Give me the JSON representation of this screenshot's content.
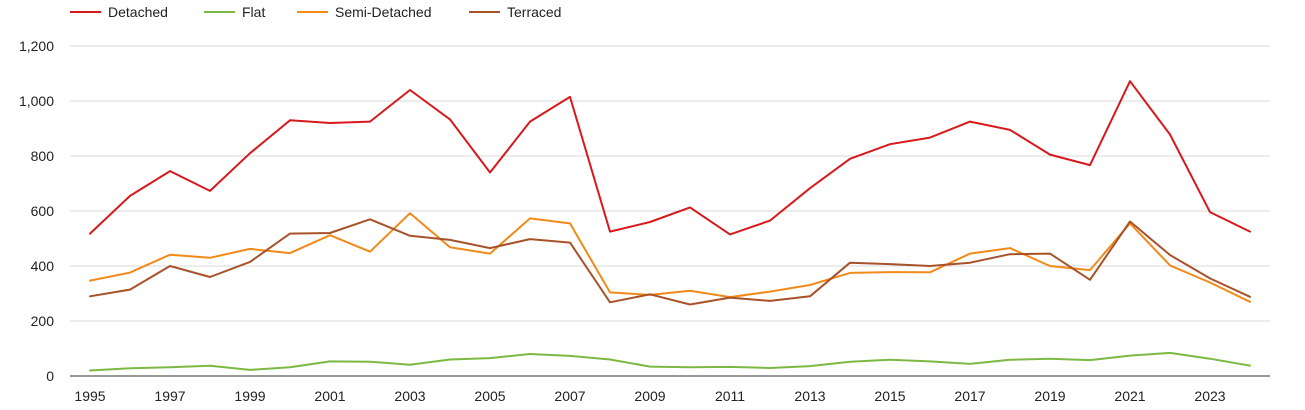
{
  "chart_data": {
    "type": "line",
    "title": "",
    "xlabel": "",
    "ylabel": "",
    "x": [
      1995,
      1996,
      1997,
      1998,
      1999,
      2000,
      2001,
      2002,
      2003,
      2004,
      2005,
      2006,
      2007,
      2008,
      2009,
      2010,
      2011,
      2012,
      2013,
      2014,
      2015,
      2016,
      2017,
      2018,
      2019,
      2020,
      2021,
      2022,
      2023,
      2024
    ],
    "xlim": [
      1995,
      2024
    ],
    "ylim": [
      0,
      1200
    ],
    "x_ticks": [
      "1995",
      "1997",
      "1999",
      "2001",
      "2003",
      "2005",
      "2007",
      "2009",
      "2011",
      "2013",
      "2015",
      "2017",
      "2019",
      "2021",
      "2023"
    ],
    "y_ticks": [
      "0",
      "200",
      "400",
      "600",
      "800",
      "1,000",
      "1,200"
    ],
    "grid": true,
    "legend_position": "top-left",
    "series": [
      {
        "name": "Detached",
        "color": "#d7191c",
        "values": [
          518,
          655,
          745,
          673,
          810,
          930,
          920,
          925,
          1040,
          933,
          740,
          925,
          1015,
          525,
          560,
          613,
          515,
          565,
          683,
          790,
          843,
          867,
          925,
          895,
          805,
          767,
          1072,
          878,
          596,
          525
        ]
      },
      {
        "name": "Flat",
        "color": "#7cb943",
        "values": [
          20,
          28,
          32,
          37,
          22,
          32,
          53,
          52,
          41,
          60,
          65,
          80,
          73,
          60,
          34,
          32,
          33,
          29,
          36,
          52,
          59,
          53,
          44,
          59,
          63,
          58,
          74,
          84,
          63,
          38
        ]
      },
      {
        "name": "Semi-Detached",
        "color": "#f28a1a",
        "values": [
          347,
          376,
          441,
          430,
          462,
          447,
          512,
          452,
          592,
          468,
          445,
          573,
          555,
          304,
          295,
          310,
          287,
          307,
          331,
          375,
          378,
          377,
          445,
          465,
          400,
          385,
          555,
          402,
          340,
          270
        ]
      },
      {
        "name": "Terraced",
        "color": "#a8522a",
        "values": [
          290,
          314,
          400,
          360,
          415,
          518,
          520,
          570,
          510,
          495,
          465,
          498,
          485,
          268,
          297,
          260,
          285,
          273,
          290,
          412,
          407,
          400,
          412,
          443,
          445,
          350,
          562,
          440,
          355,
          288
        ]
      }
    ]
  }
}
